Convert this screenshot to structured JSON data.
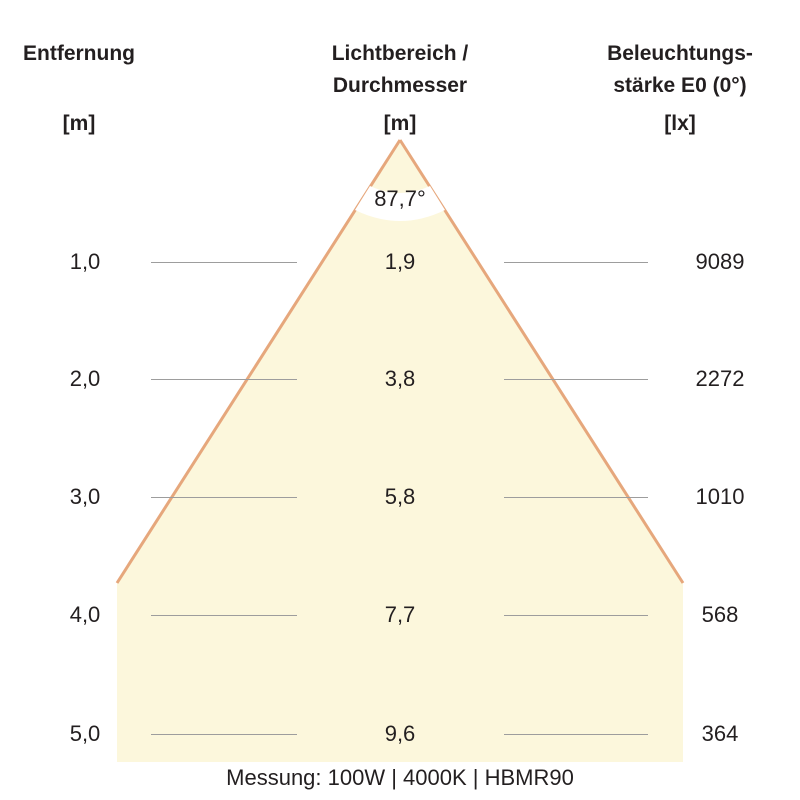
{
  "headers": {
    "distance": {
      "title": "Entfernung",
      "unit": "[m]"
    },
    "diameter": {
      "title_line1": "Lichtbereich /",
      "title_line2": "Durchmesser",
      "unit": "[m]"
    },
    "illuminance": {
      "title_line1": "Beleuchtungs-",
      "title_line2": "stärke E0 (0°)",
      "unit": "[lx]"
    }
  },
  "beam_angle": "87,7°",
  "rows": [
    {
      "distance": "1,0",
      "diameter": "1,9",
      "illuminance": "9089"
    },
    {
      "distance": "2,0",
      "diameter": "3,8",
      "illuminance": "2272"
    },
    {
      "distance": "3,0",
      "diameter": "5,8",
      "illuminance": "1010"
    },
    {
      "distance": "4,0",
      "diameter": "7,7",
      "illuminance": "568"
    },
    {
      "distance": "5,0",
      "diameter": "9,6",
      "illuminance": "364"
    }
  ],
  "footer": "Messung: 100W | 4000K | HBMR90",
  "colors": {
    "beam_fill": "#fcf7dc",
    "beam_edge": "#e6a77c",
    "rule": "#9d9d9d",
    "text": "#231f20"
  }
}
